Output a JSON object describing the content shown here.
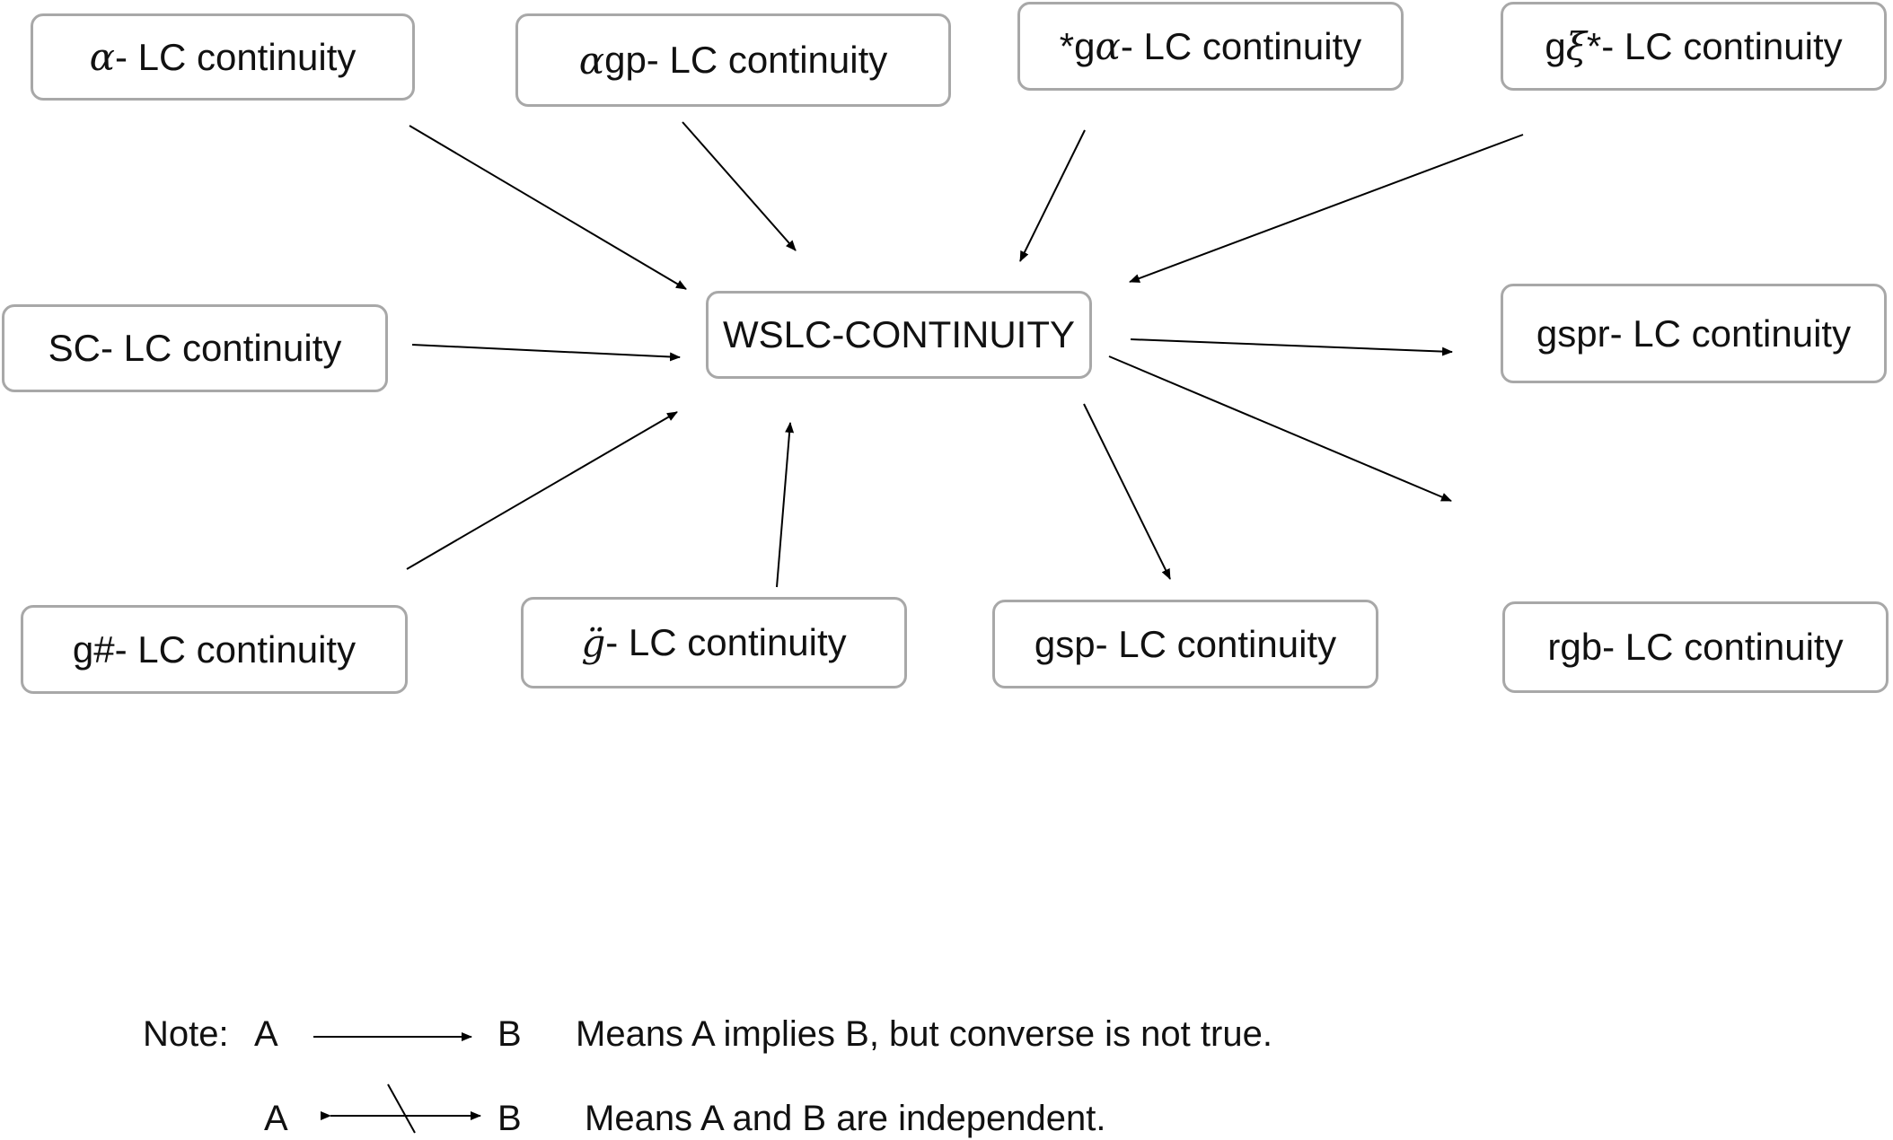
{
  "nodes": {
    "alpha": {
      "prefix": "α",
      "label": "- LC continuity"
    },
    "alphagp": {
      "prefix": "α",
      "label": "gp- LC continuity"
    },
    "star_galpha": {
      "lead": "*g",
      "prefix": "α",
      "label": "- LC continuity"
    },
    "gxi_star": {
      "lead": "g",
      "prefix": "ξ",
      "label": "*- LC continuity"
    },
    "sc": {
      "label": "SC- LC continuity"
    },
    "center": {
      "label": "WSLC-CONTINUITY"
    },
    "gspr": {
      "label": "gspr- LC continuity"
    },
    "g_hash": {
      "label": "g#- LC continuity"
    },
    "g_ddot": {
      "prefix": "g̈",
      "label": "- LC continuity"
    },
    "gsp": {
      "label": "gsp- LC continuity"
    },
    "rgb": {
      "label": "rgb- LC continuity"
    }
  },
  "edges": [
    {
      "from": "alpha",
      "to": "center"
    },
    {
      "from": "alphagp",
      "to": "center"
    },
    {
      "from": "star_galpha",
      "to": "center"
    },
    {
      "from": "gxi_star",
      "to": "center"
    },
    {
      "from": "sc",
      "to": "center"
    },
    {
      "from": "g_hash",
      "to": "center"
    },
    {
      "from": "g_ddot",
      "to": "center"
    },
    {
      "from": "center",
      "to": "gspr"
    },
    {
      "from": "center",
      "to": "gsp"
    },
    {
      "from": "center",
      "to": "rgb"
    }
  ],
  "legend": {
    "note_label": "Note:",
    "row1": {
      "a": "A",
      "b": "B",
      "text": "Means A implies B, but converse is not true."
    },
    "row2": {
      "a": "A",
      "b": "B",
      "text": "Means A and B are independent."
    }
  }
}
